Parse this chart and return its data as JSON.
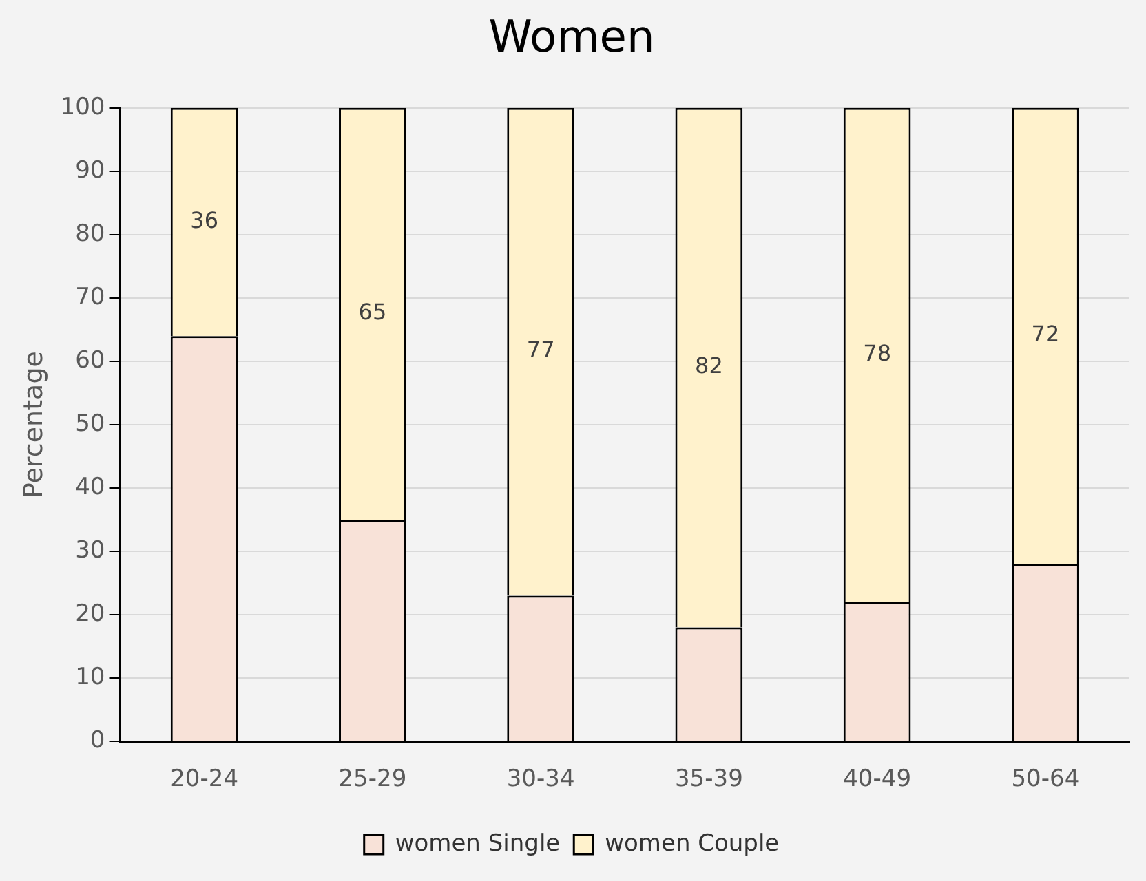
{
  "chart_data": {
    "type": "bar",
    "title": "Women",
    "ylabel": "Percentage",
    "categories": [
      "20-24",
      "25-29",
      "30-34",
      "35-39",
      "40-49",
      "50-64"
    ],
    "series": [
      {
        "name": "women Single",
        "color": "#f8e2d8",
        "values": [
          64,
          35,
          23,
          18,
          22,
          28
        ]
      },
      {
        "name": "women Couple",
        "color": "#fff2cc",
        "values": [
          36,
          65,
          77,
          82,
          78,
          72
        ],
        "value_labels": [
          "36",
          "65",
          "77",
          "82",
          "78",
          "72"
        ]
      }
    ],
    "stacked": true,
    "ylim": [
      0,
      100
    ],
    "yticks": [
      0,
      10,
      20,
      30,
      40,
      50,
      60,
      70,
      80,
      90,
      100
    ],
    "grid": "y",
    "legend": "bottom"
  }
}
